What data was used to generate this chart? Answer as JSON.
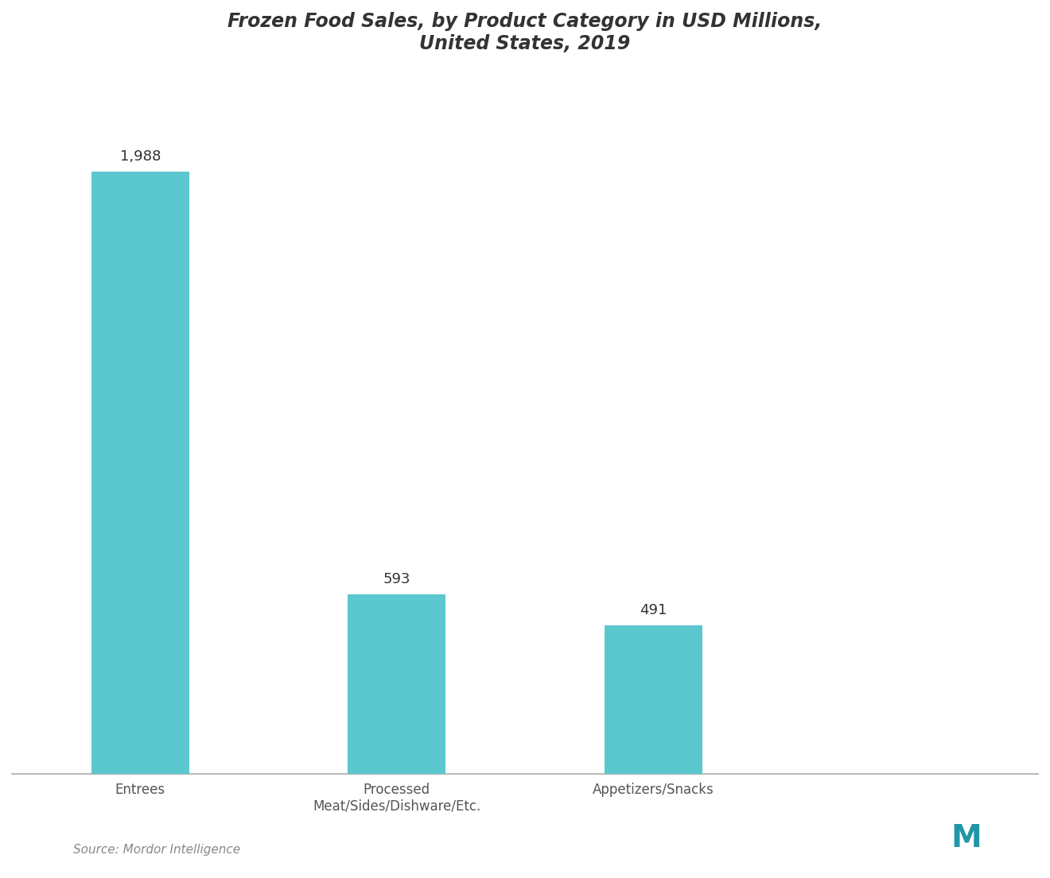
{
  "categories": [
    "Entrees",
    "Processed\nMeat/Sides/Dishware/Etc.",
    "Appetizers/Snacks"
  ],
  "values": [
    1988,
    593,
    491
  ],
  "bar_labels": [
    "1,988",
    "593",
    "491"
  ],
  "bar_color": "#5BC8CF",
  "title_line1": "Frozen Food Sales, by Product Category in USD Millions,",
  "title_line2": "United States, 2019",
  "source_text": "Source: Mordor Intelligence",
  "background_color": "#ffffff",
  "plot_bg_color": "#ffffff",
  "title_color": "#333333",
  "label_color": "#555555",
  "bar_label_color": "#333333",
  "bottom_line_color": "#aaaaaa",
  "ylim": [
    0,
    2300
  ],
  "title_fontsize": 17,
  "bar_label_fontsize": 13,
  "tick_label_fontsize": 12,
  "source_fontsize": 11,
  "bar_width": 0.38
}
